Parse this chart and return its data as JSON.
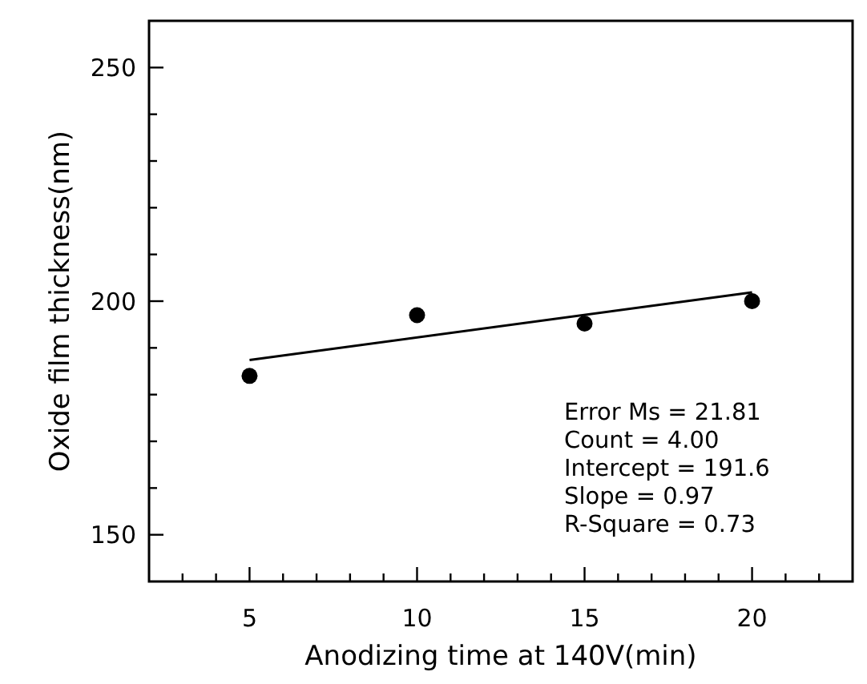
{
  "chart_data": {
    "type": "scatter",
    "xlabel": "Anodizing time at 140V(min)",
    "ylabel": "Oxide film thickness(nm)",
    "xlim": [
      2,
      23
    ],
    "ylim": [
      140,
      260
    ],
    "xticks": [
      {
        "value": 3,
        "label": null
      },
      {
        "value": 4,
        "label": null
      },
      5,
      {
        "value": 6,
        "label": null
      },
      {
        "value": 7,
        "label": null
      },
      {
        "value": 8,
        "label": null
      },
      {
        "value": 9,
        "label": null
      },
      10,
      {
        "value": 11,
        "label": null
      },
      {
        "value": 12,
        "label": null
      },
      {
        "value": 13,
        "label": null
      },
      {
        "value": 14,
        "label": null
      },
      15,
      {
        "value": 16,
        "label": null
      },
      {
        "value": 17,
        "label": null
      },
      {
        "value": 18,
        "label": null
      },
      {
        "value": 19,
        "label": null
      },
      20,
      {
        "value": 21,
        "label": null
      },
      {
        "value": 22,
        "label": null
      }
    ],
    "yticks": [
      150,
      {
        "value": 160,
        "label": null
      },
      {
        "value": 170,
        "label": null
      },
      {
        "value": 180,
        "label": null
      },
      {
        "value": 190,
        "label": null
      },
      200,
      {
        "value": 210,
        "label": null
      },
      {
        "value": 220,
        "label": null
      },
      {
        "value": 230,
        "label": null
      },
      {
        "value": 240,
        "label": null
      },
      250
    ],
    "grid": false,
    "marker": "circle",
    "series": [
      {
        "type": "scatter",
        "color": "#000000",
        "x": [
          5,
          10,
          15,
          20
        ],
        "values": [
          184,
          197,
          195.2,
          200
        ]
      },
      {
        "type": "line",
        "color": "#000000",
        "marker": "none",
        "line_style": "solid",
        "x": [
          5,
          20
        ],
        "values": [
          187.4,
          201.9
        ]
      }
    ],
    "annotations": [
      "Error Ms = 21.81",
      "Count = 4.00",
      "Intercept = 191.6",
      "Slope = 0.97",
      "R-Square = 0.73"
    ]
  }
}
